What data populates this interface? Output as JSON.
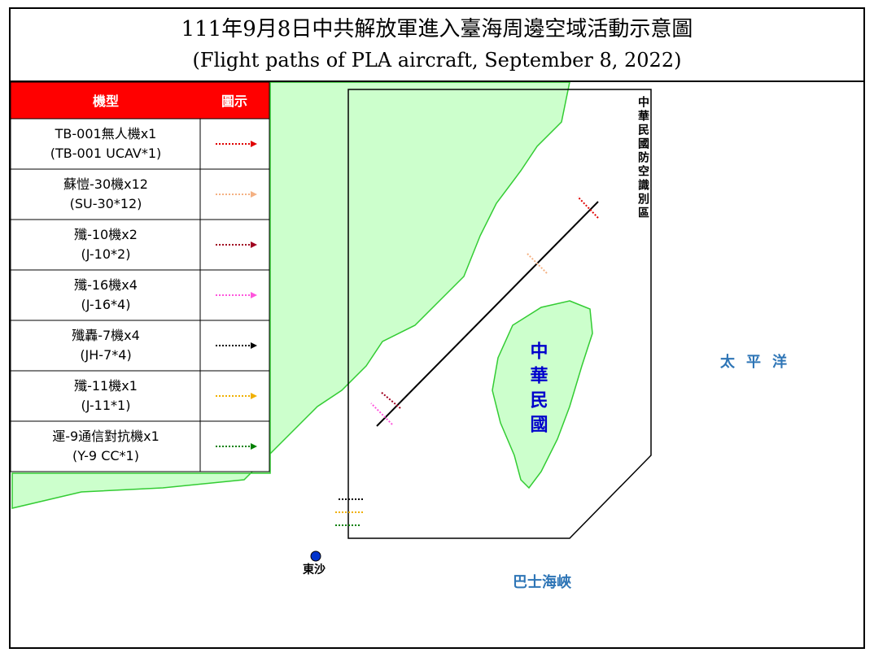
{
  "header": {
    "title": "111年9月8日中共解放軍進入臺海周邊空域活動示意圖",
    "subtitle": "(Flight paths of PLA aircraft, September 8, 2022)"
  },
  "legend": {
    "columns": [
      "機型",
      "圖示"
    ],
    "rows": [
      {
        "label": "TB-001無人機x1",
        "label_en": "(TB-001 UCAV*1)",
        "color": "#e00000"
      },
      {
        "label": "蘇愷-30機x12",
        "label_en": "(SU-30*12)",
        "color": "#f4b183"
      },
      {
        "label": "殲-10機x2",
        "label_en": "(J-10*2)",
        "color": "#a00020"
      },
      {
        "label": "殲-16機x4",
        "label_en": "(J-16*4)",
        "color": "#ff55dd"
      },
      {
        "label": "殲轟-7機x4",
        "label_en": "(JH-7*4)",
        "color": "#000000"
      },
      {
        "label": "殲-11機x1",
        "label_en": "(J-11*1)",
        "color": "#f0b000"
      },
      {
        "label": "運-9通信對抗機x1",
        "label_en": "(Y-9 CC*1)",
        "color": "#008000"
      }
    ]
  },
  "map_labels": {
    "adiz": "中華民國防空識別區",
    "taiwan": "中華民國",
    "pacific": "太平洋",
    "bashi": "巴士海峽",
    "dongsha": "東沙"
  }
}
